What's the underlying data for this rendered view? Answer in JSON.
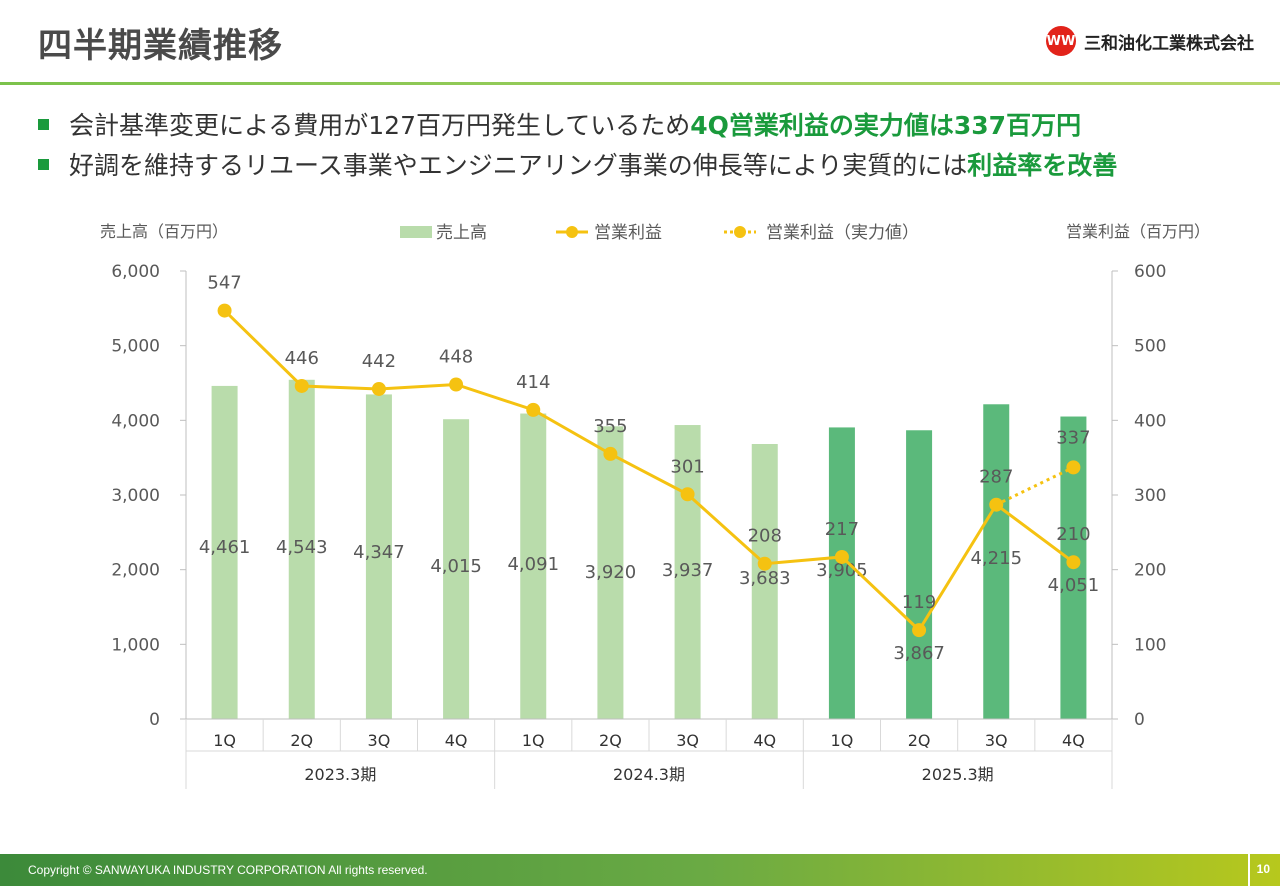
{
  "header": {
    "title": "四半期業績推移",
    "company": "三和油化工業株式会社",
    "logo_mark": "WW"
  },
  "bullets": [
    {
      "normal": "会計基準変更による費用が127百万円発生しているため",
      "highlight": "4Q営業利益の実力値は337百万円"
    },
    {
      "normal": "好調を維持するリユース事業やエンジニアリング事業の伸長等により実質的には",
      "highlight": "利益率を改善"
    }
  ],
  "footer": {
    "copyright": "Copyright © SANWAYUKA INDUSTRY CORPORATION All rights reserved.",
    "page": "10"
  },
  "chart_data": {
    "type": "bar+line",
    "y_left_label": "売上高（百万円）",
    "y_right_label": "営業利益（百万円）",
    "y_left_ticks": [
      "0",
      "1,000",
      "2,000",
      "3,000",
      "4,000",
      "5,000",
      "6,000"
    ],
    "y_right_ticks": [
      "0",
      "100",
      "200",
      "300",
      "400",
      "500",
      "600"
    ],
    "ylim_left": [
      0,
      6000
    ],
    "ylim_right": [
      0,
      600
    ],
    "categories": [
      "1Q",
      "2Q",
      "3Q",
      "4Q",
      "1Q",
      "2Q",
      "3Q",
      "4Q",
      "1Q",
      "2Q",
      "3Q",
      "4Q"
    ],
    "groups": [
      {
        "label": "2023.3期",
        "count": 4
      },
      {
        "label": "2024.3期",
        "count": 4
      },
      {
        "label": "2025.3期",
        "count": 4
      }
    ],
    "legend": {
      "bar": "売上高",
      "line": "営業利益",
      "dotted": "営業利益（実力値）"
    },
    "sales": [
      4461,
      4543,
      4347,
      4015,
      4091,
      3920,
      3937,
      3683,
      3905,
      3867,
      4215,
      4051
    ],
    "sales_labels": [
      "4,461",
      "4,543",
      "4,347",
      "4,015",
      "4,091",
      "3,920",
      "3,937",
      "3,683",
      "3,905",
      "3,867",
      "4,215",
      "4,051"
    ],
    "operating_profit": [
      547,
      446,
      442,
      448,
      414,
      355,
      301,
      208,
      217,
      119,
      287,
      210
    ],
    "operating_profit_actual": {
      "from_index": 10,
      "to_index": 11,
      "values": [
        287,
        337
      ]
    },
    "actual_label": "337",
    "colors": {
      "bar_light": "#b9dcab",
      "bar_dark": "#5bb97b",
      "line": "#f5c211",
      "axis": "#bfbfbf",
      "text": "#595959"
    },
    "grid": false,
    "legend_position": "top"
  }
}
